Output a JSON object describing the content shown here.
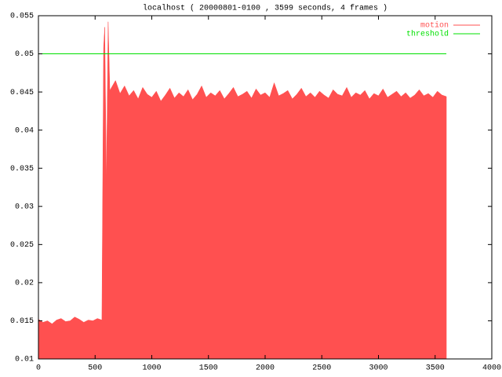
{
  "chart_data": {
    "type": "area",
    "title": "localhost ( 20000801-0100 , 3599 seconds, 4 frames )",
    "xlim": [
      0,
      4000
    ],
    "ylim": [
      0.01,
      0.055
    ],
    "xticks": [
      0,
      500,
      1000,
      1500,
      2000,
      2500,
      3000,
      3500,
      4000
    ],
    "yticks": [
      0.01,
      0.015,
      0.02,
      0.025,
      0.03,
      0.035,
      0.04,
      0.045,
      0.05,
      0.055
    ],
    "grid": false,
    "legend": "top-right",
    "series": [
      {
        "name": "motion",
        "color": "#ff5050",
        "x": [
          0,
          40,
          80,
          120,
          160,
          200,
          240,
          280,
          320,
          360,
          400,
          440,
          480,
          520,
          560,
          575,
          585,
          600,
          615,
          630,
          680,
          720,
          760,
          800,
          840,
          880,
          920,
          960,
          1000,
          1040,
          1080,
          1120,
          1160,
          1200,
          1240,
          1280,
          1320,
          1360,
          1400,
          1440,
          1480,
          1520,
          1560,
          1600,
          1640,
          1680,
          1720,
          1760,
          1800,
          1840,
          1880,
          1920,
          1960,
          2000,
          2040,
          2080,
          2120,
          2160,
          2200,
          2240,
          2280,
          2320,
          2360,
          2400,
          2440,
          2480,
          2520,
          2560,
          2600,
          2640,
          2680,
          2720,
          2760,
          2800,
          2840,
          2880,
          2920,
          2960,
          3000,
          3040,
          3080,
          3120,
          3160,
          3200,
          3240,
          3280,
          3320,
          3360,
          3400,
          3440,
          3480,
          3520,
          3560,
          3599
        ],
        "values": [
          0.0152,
          0.0148,
          0.015,
          0.0146,
          0.0151,
          0.0153,
          0.0149,
          0.015,
          0.0155,
          0.0152,
          0.0148,
          0.0151,
          0.015,
          0.0153,
          0.0151,
          0.0508,
          0.0535,
          0.0328,
          0.0542,
          0.0452,
          0.0465,
          0.0448,
          0.0458,
          0.0445,
          0.0452,
          0.0441,
          0.0456,
          0.0447,
          0.0443,
          0.0451,
          0.0438,
          0.0446,
          0.0455,
          0.0442,
          0.0449,
          0.0444,
          0.0453,
          0.044,
          0.0447,
          0.0458,
          0.0443,
          0.0449,
          0.0445,
          0.0452,
          0.0441,
          0.0448,
          0.0456,
          0.0444,
          0.0447,
          0.0451,
          0.0442,
          0.0454,
          0.0446,
          0.0449,
          0.0443,
          0.0462,
          0.0445,
          0.0448,
          0.0452,
          0.0441,
          0.0447,
          0.0455,
          0.0444,
          0.0449,
          0.0443,
          0.0451,
          0.0446,
          0.0442,
          0.0453,
          0.0447,
          0.0445,
          0.0456,
          0.0443,
          0.0449,
          0.0446,
          0.0452,
          0.0441,
          0.0448,
          0.0445,
          0.0454,
          0.0443,
          0.0447,
          0.0451,
          0.0444,
          0.0449,
          0.0442,
          0.0446,
          0.0453,
          0.0445,
          0.0448,
          0.0443,
          0.0451,
          0.0446,
          0.0444
        ]
      },
      {
        "name": "threshold",
        "color": "#00e000",
        "x": [
          0,
          3599
        ],
        "values": [
          0.05,
          0.05
        ]
      }
    ]
  }
}
